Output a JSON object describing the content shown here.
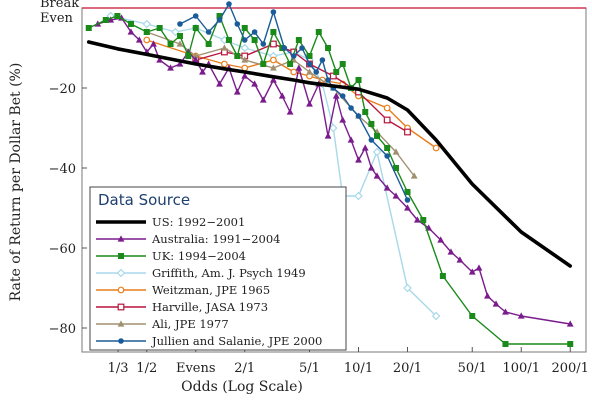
{
  "chart_data": {
    "type": "line",
    "title": "",
    "xlabel": "Odds (Log Scale)",
    "ylabel": "Rate of Return per Dollar Bet (%)",
    "x_scale": "log",
    "x_unit": "odds expressed as payoff ratio (Evens = 1/1)",
    "xlim": [
      0.2,
      250
    ],
    "ylim": [
      -86,
      0
    ],
    "x_ticks": [
      {
        "value": 0.3333,
        "label": "1/3"
      },
      {
        "value": 0.5,
        "label": "1/2"
      },
      {
        "value": 1,
        "label": "Evens"
      },
      {
        "value": 2,
        "label": "2/1"
      },
      {
        "value": 5,
        "label": "5/1"
      },
      {
        "value": 10,
        "label": "10/1"
      },
      {
        "value": 20,
        "label": "20/1"
      },
      {
        "value": 50,
        "label": "50/1"
      },
      {
        "value": 100,
        "label": "100/1"
      },
      {
        "value": 200,
        "label": "200/1"
      }
    ],
    "y_ticks": [
      {
        "value": -20,
        "label": "−20"
      },
      {
        "value": -40,
        "label": "−40"
      },
      {
        "value": -60,
        "label": "−60"
      },
      {
        "value": -80,
        "label": "−80"
      }
    ],
    "reference_line": {
      "y": 0,
      "label_line1": "Break",
      "label_line2": "Even",
      "color": "#c8102e"
    },
    "legend": {
      "title": "Data Source",
      "placement": "bottom-left"
    },
    "grid": false,
    "series": [
      {
        "name": "US: 1992−2001",
        "color": "#000000",
        "marker": "none",
        "x": [
          0.22,
          0.33,
          0.5,
          0.75,
          1,
          1.5,
          2,
          3,
          4,
          5,
          7,
          10,
          15,
          20,
          30,
          50,
          100,
          200
        ],
        "y": [
          -8.5,
          -10.2,
          -11.6,
          -13,
          -14,
          -15.2,
          -16,
          -17.2,
          -18,
          -18.7,
          -19.5,
          -20.3,
          -22.5,
          -25.5,
          -33,
          -44,
          -56,
          -64.5
        ]
      },
      {
        "name": "Australia: 1991−2004",
        "color": "#7a1c8c",
        "marker": "triangle",
        "x": [
          0.25,
          0.3,
          0.35,
          0.4,
          0.45,
          0.5,
          0.55,
          0.6,
          0.7,
          0.8,
          0.9,
          1,
          1.1,
          1.2,
          1.4,
          1.6,
          1.8,
          2,
          2.3,
          2.6,
          3,
          3.4,
          3.8,
          4.3,
          5,
          5.7,
          6.5,
          7.3,
          8,
          9,
          10,
          11,
          12,
          13,
          15,
          17,
          20,
          23,
          27,
          32,
          37,
          42,
          50,
          55,
          62,
          70,
          80,
          100,
          200
        ],
        "y": [
          -4,
          -3,
          -2.5,
          -6,
          -8,
          -11,
          -9,
          -13,
          -15,
          -14,
          -11,
          -13,
          -16,
          -14,
          -19,
          -15,
          -21,
          -17,
          -19,
          -23,
          -18,
          -22,
          -26,
          -15,
          -24,
          -19,
          -32,
          -22,
          -28,
          -33,
          -38,
          -35,
          -40,
          -42,
          -45,
          -47,
          -50,
          -53,
          -55,
          -58,
          -61,
          -63,
          -66,
          -65,
          -72,
          -74,
          -76,
          -77,
          -79
        ]
      },
      {
        "name": "UK: 1994−2004",
        "color": "#1a8a1a",
        "marker": "square",
        "x": [
          0.22,
          0.28,
          0.33,
          0.4,
          0.5,
          0.6,
          0.7,
          0.8,
          0.9,
          1,
          1.2,
          1.4,
          1.6,
          1.8,
          2,
          2.3,
          2.6,
          3,
          3.4,
          3.8,
          4.3,
          5,
          5.7,
          6.5,
          7.3,
          8,
          9,
          10,
          11,
          12,
          13,
          15,
          17,
          20,
          25,
          33,
          50,
          80,
          200
        ],
        "y": [
          -5,
          -3,
          -2,
          -4,
          -6,
          -5,
          -9,
          -7,
          -12,
          -5,
          -9,
          -2,
          -8,
          -12,
          -5,
          -8,
          -14,
          -6,
          -10,
          -14,
          -8,
          -12,
          -6,
          -10,
          -16,
          -14,
          -20,
          -18,
          -26,
          -29,
          -32,
          -35,
          -40,
          -46,
          -53,
          -67,
          -77,
          -84,
          -84
        ]
      },
      {
        "name": "Griffith, Am. J. Psych 1949",
        "color": "#a8d8ea",
        "marker": "diamond",
        "x": [
          0.3,
          0.5,
          0.75,
          1,
          1.5,
          2,
          3,
          4,
          5,
          6,
          7,
          8,
          10,
          13,
          20,
          30
        ],
        "y": [
          -2,
          -4,
          -6,
          -5,
          -8,
          -10,
          -12,
          -11,
          -13,
          -19,
          -30,
          -47,
          -47,
          -36,
          -70,
          -77
        ]
      },
      {
        "name": "Weitzman, JPE 1965",
        "color": "#e87d1a",
        "marker": "circle",
        "x": [
          0.5,
          1,
          1.5,
          2,
          3,
          4,
          5,
          6,
          8,
          10,
          15,
          20,
          30
        ],
        "y": [
          -8,
          -12,
          -14,
          -15,
          -13,
          -16,
          -17,
          -18,
          -19,
          -22,
          -25,
          -30,
          -35
        ]
      },
      {
        "name": "Harville, JASA 1973",
        "color": "#b8143c",
        "marker": "square-open",
        "x": [
          1,
          1.5,
          2,
          3,
          4,
          5,
          7,
          10,
          15,
          20
        ],
        "y": [
          -13,
          -11,
          -12,
          -9,
          -11,
          -14,
          -17,
          -21,
          -28,
          -31
        ]
      },
      {
        "name": "Ali, JPE 1977",
        "color": "#a09070",
        "marker": "triangle",
        "x": [
          0.5,
          0.8,
          1,
          1.5,
          2,
          3,
          4,
          5,
          7,
          10,
          13,
          17,
          22
        ],
        "y": [
          -6,
          -9,
          -12,
          -10,
          -13,
          -15,
          -13,
          -16,
          -20,
          -27,
          -31,
          -36,
          -42
        ]
      },
      {
        "name": "Jullien and Salanie, JPE 2000",
        "color": "#1a5c99",
        "marker": "circle-filled",
        "x": [
          0.8,
          1,
          1.2,
          1.4,
          1.6,
          1.8,
          2,
          2.3,
          2.6,
          3,
          3.5,
          4,
          4.5,
          5,
          5.5,
          6,
          6.5,
          7,
          8,
          9,
          10,
          12,
          15,
          20
        ],
        "y": [
          -4,
          -2,
          -6,
          -3,
          1,
          -4,
          -8,
          -6,
          -9,
          -1,
          -10,
          -12,
          -10,
          -14,
          -16,
          -13,
          -18,
          -20,
          -22,
          -25,
          -27,
          -33,
          -37,
          -48
        ]
      }
    ]
  }
}
